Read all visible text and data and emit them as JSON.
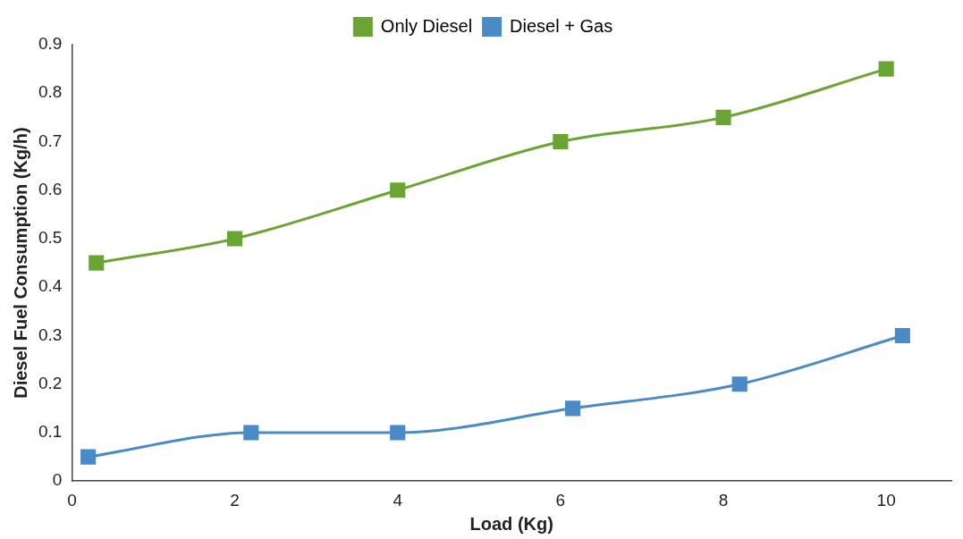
{
  "chart_data": {
    "type": "line",
    "xlabel": "Load (Kg)",
    "ylabel": "Diesel Fuel Consumption (Kg/h)",
    "xlim": [
      0,
      10.8
    ],
    "xticks": [
      0,
      2,
      4,
      6,
      8,
      10
    ],
    "ylim": [
      0,
      0.9
    ],
    "yticks": [
      0,
      0.1,
      0.2,
      0.3,
      0.4,
      0.5,
      0.6,
      0.7,
      0.8,
      0.9
    ],
    "grid": false,
    "legend": "top",
    "marker": "square",
    "line_style": "solid",
    "series": [
      {
        "name": "Only Diesel",
        "color": "#6aa534",
        "x": [
          0.3,
          2,
          4,
          6,
          8,
          10
        ],
        "values": [
          0.45,
          0.5,
          0.6,
          0.7,
          0.75,
          0.85
        ]
      },
      {
        "name": "Diesel + Gas",
        "color": "#4a8ac7",
        "x": [
          0.2,
          2.2,
          4,
          6.15,
          8.2,
          10.2
        ],
        "values": [
          0.05,
          0.1,
          0.1,
          0.15,
          0.2,
          0.3
        ]
      }
    ]
  }
}
